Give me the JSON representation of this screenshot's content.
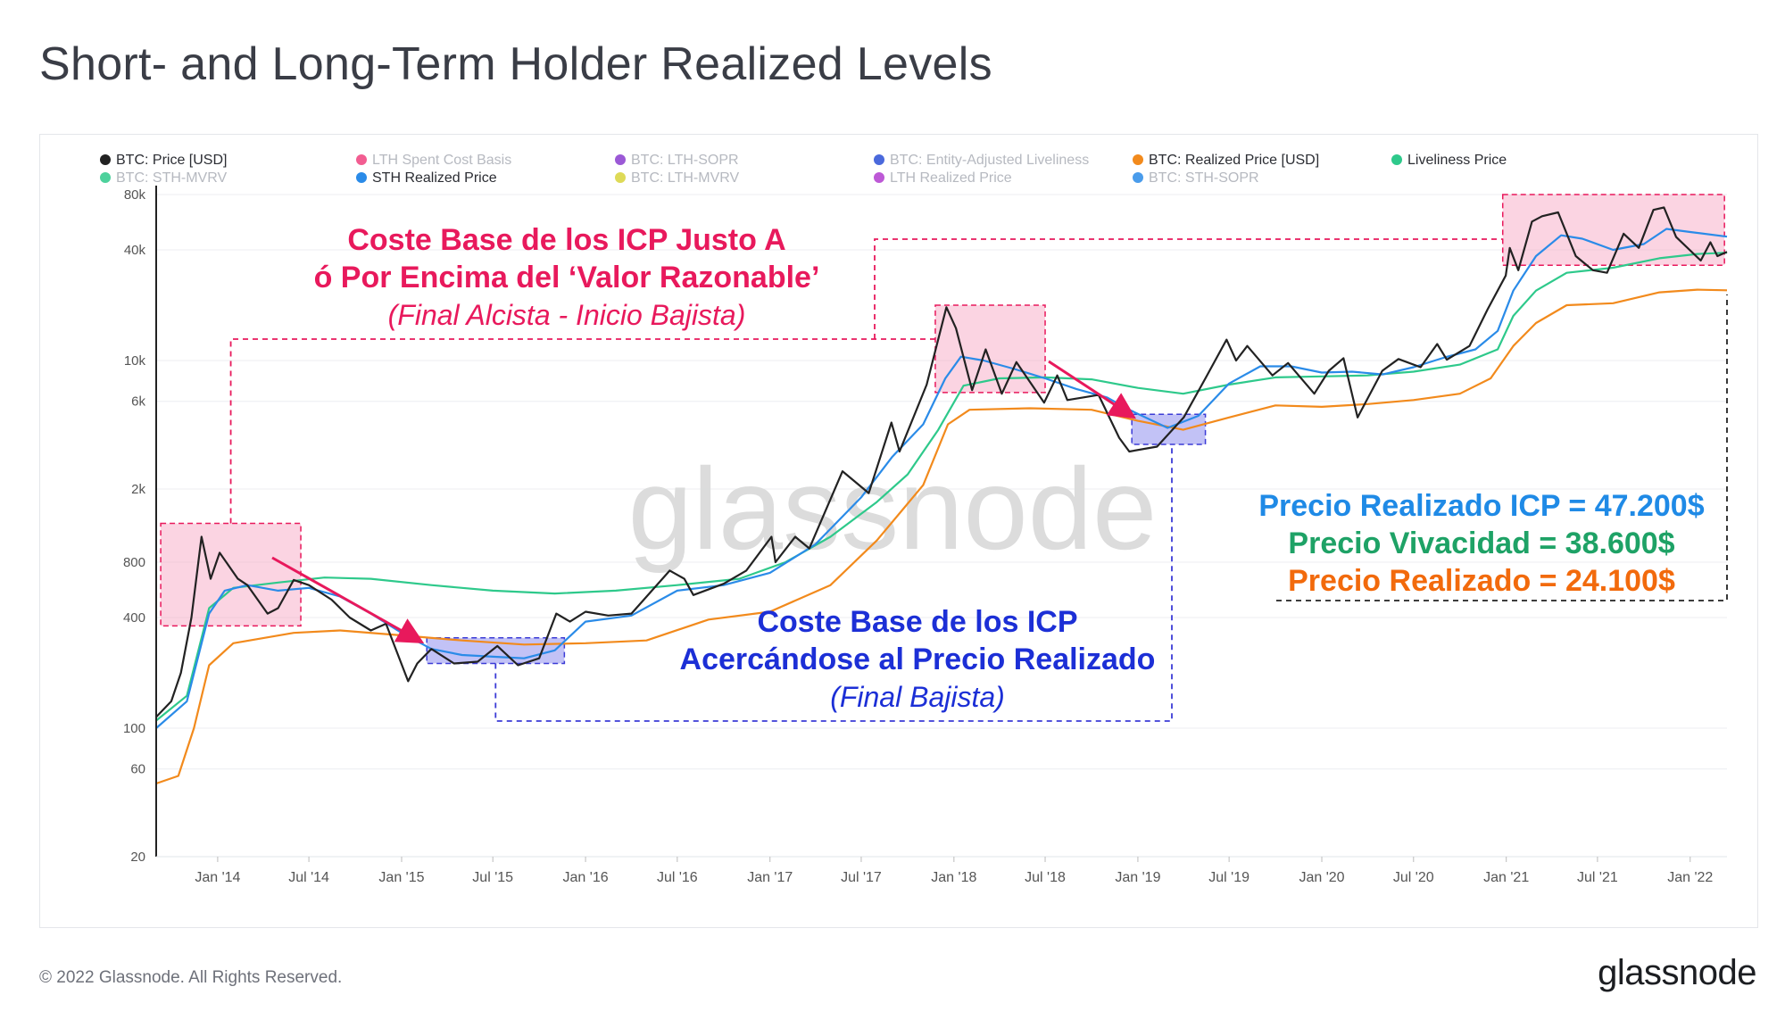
{
  "header": {
    "title": "Short- and Long-Term Holder Realized Levels"
  },
  "footer": {
    "copyright": "© 2022 Glassnode. All Rights Reserved.",
    "logo": "glassnode"
  },
  "watermark": "glassnode",
  "legend": [
    {
      "label": "BTC: Price [USD]",
      "color": "#222222",
      "active": true
    },
    {
      "label": "LTH Spent Cost Basis",
      "color": "#f0417e",
      "active": false
    },
    {
      "label": "BTC: LTH-SOPR",
      "color": "#8a3ccf",
      "active": false
    },
    {
      "label": "BTC: Entity-Adjusted Liveliness",
      "color": "#2a4fd6",
      "active": false
    },
    {
      "label": "BTC: Realized Price [USD]",
      "color": "#f28a1c",
      "active": true
    },
    {
      "label": "Liveliness Price",
      "color": "#2ec98b",
      "active": true
    },
    {
      "label": "BTC: STH-MVRV",
      "color": "#2ec98b",
      "active": false
    },
    {
      "label": "STH Realized Price",
      "color": "#2a8be8",
      "active": true
    },
    {
      "label": "BTC: LTH-MVRV",
      "color": "#d8d33a",
      "active": false
    },
    {
      "label": "LTH Realized Price",
      "color": "#b23ccf",
      "active": false
    },
    {
      "label": "BTC: STH-SOPR",
      "color": "#2a8be8",
      "active": false
    }
  ],
  "annotations": {
    "top_line1": "Coste Base de los ICP Justo A",
    "top_line2": "ó Por Encima del ‘Valor Razonable’",
    "top_line3": "(Final Alcista - Inicio Bajista)",
    "mid_line1": "Coste Base de los ICP",
    "mid_line2": "Acercándose al Precio Realizado",
    "mid_line3": "(Final Bajista)",
    "right_line1": "Precio Realizado ICP = 47.200$",
    "right_line2": "Precio Vivacidad = 38.600$",
    "right_line3": "Precio Realizado = 24.100$"
  },
  "colors": {
    "price": "#222222",
    "realized": "#f28a1c",
    "liveliness": "#2ec98b",
    "sth": "#2a8be8",
    "pink_text": "#e8195c",
    "blue_text": "#1c2fd6",
    "sth_text": "#1f8ae6",
    "live_text": "#1ea266",
    "real_text": "#f26a0c"
  },
  "chart_data": {
    "type": "line",
    "y_scale": "log",
    "ylim": [
      20,
      80000
    ],
    "yticks": [
      {
        "v": 20,
        "label": "20"
      },
      {
        "v": 60,
        "label": "60"
      },
      {
        "v": 100,
        "label": "100"
      },
      {
        "v": 400,
        "label": "400"
      },
      {
        "v": 800,
        "label": "800"
      },
      {
        "v": 2000,
        "label": "2k"
      },
      {
        "v": 6000,
        "label": "6k"
      },
      {
        "v": 10000,
        "label": "10k"
      },
      {
        "v": 40000,
        "label": "40k"
      },
      {
        "v": 80000,
        "label": "80k"
      }
    ],
    "xlim": [
      "2013-09-01",
      "2022-03-15"
    ],
    "xticks": [
      {
        "d": "2014-01-01",
        "label": "Jan '14"
      },
      {
        "d": "2014-07-01",
        "label": "Jul '14"
      },
      {
        "d": "2015-01-01",
        "label": "Jan '15"
      },
      {
        "d": "2015-07-01",
        "label": "Jul '15"
      },
      {
        "d": "2016-01-01",
        "label": "Jan '16"
      },
      {
        "d": "2016-07-01",
        "label": "Jul '16"
      },
      {
        "d": "2017-01-01",
        "label": "Jan '17"
      },
      {
        "d": "2017-07-01",
        "label": "Jul '17"
      },
      {
        "d": "2018-01-01",
        "label": "Jan '18"
      },
      {
        "d": "2018-07-01",
        "label": "Jul '18"
      },
      {
        "d": "2019-01-01",
        "label": "Jan '19"
      },
      {
        "d": "2019-07-01",
        "label": "Jul '19"
      },
      {
        "d": "2020-01-01",
        "label": "Jan '20"
      },
      {
        "d": "2020-07-01",
        "label": "Jul '20"
      },
      {
        "d": "2021-01-01",
        "label": "Jan '21"
      },
      {
        "d": "2021-07-01",
        "label": "Jul '21"
      },
      {
        "d": "2022-01-01",
        "label": "Jan '22"
      }
    ],
    "series": [
      {
        "name": "BTC: Price [USD]",
        "color": "#222222",
        "width": 2.2,
        "points": [
          [
            "2013-09-01",
            115
          ],
          [
            "2013-10-01",
            140
          ],
          [
            "2013-10-20",
            200
          ],
          [
            "2013-11-10",
            400
          ],
          [
            "2013-11-30",
            1100
          ],
          [
            "2013-12-18",
            650
          ],
          [
            "2014-01-05",
            900
          ],
          [
            "2014-02-10",
            650
          ],
          [
            "2014-03-01",
            600
          ],
          [
            "2014-04-10",
            420
          ],
          [
            "2014-05-01",
            450
          ],
          [
            "2014-06-01",
            640
          ],
          [
            "2014-07-01",
            600
          ],
          [
            "2014-08-15",
            500
          ],
          [
            "2014-09-20",
            400
          ],
          [
            "2014-11-01",
            340
          ],
          [
            "2014-12-01",
            370
          ],
          [
            "2015-01-14",
            180
          ],
          [
            "2015-02-01",
            225
          ],
          [
            "2015-03-01",
            270
          ],
          [
            "2015-04-15",
            225
          ],
          [
            "2015-06-01",
            230
          ],
          [
            "2015-07-10",
            280
          ],
          [
            "2015-08-20",
            220
          ],
          [
            "2015-10-01",
            240
          ],
          [
            "2015-11-04",
            420
          ],
          [
            "2015-12-01",
            380
          ],
          [
            "2016-01-01",
            430
          ],
          [
            "2016-02-15",
            410
          ],
          [
            "2016-04-01",
            420
          ],
          [
            "2016-06-16",
            720
          ],
          [
            "2016-07-15",
            650
          ],
          [
            "2016-08-02",
            530
          ],
          [
            "2016-10-01",
            610
          ],
          [
            "2016-11-15",
            720
          ],
          [
            "2017-01-04",
            1100
          ],
          [
            "2017-01-12",
            800
          ],
          [
            "2017-02-20",
            1100
          ],
          [
            "2017-03-20",
            950
          ],
          [
            "2017-05-25",
            2500
          ],
          [
            "2017-07-16",
            1900
          ],
          [
            "2017-08-30",
            4600
          ],
          [
            "2017-09-15",
            3200
          ],
          [
            "2017-11-08",
            7400
          ],
          [
            "2017-12-17",
            19500
          ],
          [
            "2018-01-05",
            15000
          ],
          [
            "2018-02-06",
            6900
          ],
          [
            "2018-03-05",
            11500
          ],
          [
            "2018-04-06",
            6600
          ],
          [
            "2018-05-05",
            9800
          ],
          [
            "2018-06-29",
            5900
          ],
          [
            "2018-07-25",
            8300
          ],
          [
            "2018-08-14",
            6100
          ],
          [
            "2018-10-15",
            6500
          ],
          [
            "2018-11-25",
            3800
          ],
          [
            "2018-12-15",
            3200
          ],
          [
            "2019-02-08",
            3400
          ],
          [
            "2019-04-02",
            4900
          ],
          [
            "2019-05-15",
            8000
          ],
          [
            "2019-06-26",
            13000
          ],
          [
            "2019-07-15",
            10000
          ],
          [
            "2019-08-06",
            12000
          ],
          [
            "2019-09-25",
            8300
          ],
          [
            "2019-10-26",
            9700
          ],
          [
            "2019-12-17",
            6600
          ],
          [
            "2020-01-15",
            8800
          ],
          [
            "2020-02-13",
            10300
          ],
          [
            "2020-03-12",
            4900
          ],
          [
            "2020-04-30",
            8800
          ],
          [
            "2020-06-01",
            10200
          ],
          [
            "2020-07-15",
            9200
          ],
          [
            "2020-08-17",
            12300
          ],
          [
            "2020-09-05",
            10100
          ],
          [
            "2020-10-20",
            12000
          ],
          [
            "2020-11-25",
            19000
          ],
          [
            "2020-12-31",
            29000
          ],
          [
            "2021-01-08",
            41000
          ],
          [
            "2021-01-25",
            31000
          ],
          [
            "2021-02-21",
            57000
          ],
          [
            "2021-03-13",
            61000
          ],
          [
            "2021-04-14",
            64000
          ],
          [
            "2021-05-19",
            37000
          ],
          [
            "2021-06-22",
            31000
          ],
          [
            "2021-07-20",
            30000
          ],
          [
            "2021-08-22",
            49000
          ],
          [
            "2021-09-21",
            41000
          ],
          [
            "2021-10-20",
            66000
          ],
          [
            "2021-11-10",
            68000
          ],
          [
            "2021-12-04",
            47000
          ],
          [
            "2022-01-22",
            35000
          ],
          [
            "2022-02-10",
            44000
          ],
          [
            "2022-02-24",
            37000
          ],
          [
            "2022-03-15",
            39000
          ]
        ]
      },
      {
        "name": "STH Realized Price",
        "color": "#2a8be8",
        "width": 2.2,
        "points": [
          [
            "2013-09-01",
            100
          ],
          [
            "2013-11-01",
            140
          ],
          [
            "2013-12-15",
            420
          ],
          [
            "2014-01-15",
            560
          ],
          [
            "2014-03-01",
            600
          ],
          [
            "2014-05-01",
            560
          ],
          [
            "2014-07-01",
            580
          ],
          [
            "2014-09-01",
            520
          ],
          [
            "2014-11-01",
            420
          ],
          [
            "2015-01-01",
            330
          ],
          [
            "2015-03-01",
            270
          ],
          [
            "2015-05-01",
            250
          ],
          [
            "2015-07-01",
            245
          ],
          [
            "2015-09-01",
            240
          ],
          [
            "2015-11-01",
            265
          ],
          [
            "2016-01-01",
            380
          ],
          [
            "2016-04-01",
            410
          ],
          [
            "2016-07-01",
            560
          ],
          [
            "2016-10-01",
            600
          ],
          [
            "2017-01-01",
            700
          ],
          [
            "2017-04-01",
            1000
          ],
          [
            "2017-07-01",
            1800
          ],
          [
            "2017-09-01",
            3000
          ],
          [
            "2017-11-01",
            4500
          ],
          [
            "2017-12-15",
            8000
          ],
          [
            "2018-01-15",
            10500
          ],
          [
            "2018-03-01",
            10000
          ],
          [
            "2018-05-01",
            9000
          ],
          [
            "2018-07-01",
            8000
          ],
          [
            "2018-09-01",
            7000
          ],
          [
            "2018-11-01",
            6300
          ],
          [
            "2018-12-15",
            5400
          ],
          [
            "2019-03-01",
            4300
          ],
          [
            "2019-05-01",
            5000
          ],
          [
            "2019-07-01",
            7500
          ],
          [
            "2019-09-01",
            9300
          ],
          [
            "2019-11-01",
            9300
          ],
          [
            "2020-01-01",
            8600
          ],
          [
            "2020-03-01",
            8700
          ],
          [
            "2020-05-01",
            8400
          ],
          [
            "2020-07-01",
            9200
          ],
          [
            "2020-09-01",
            10400
          ],
          [
            "2020-11-01",
            11500
          ],
          [
            "2020-12-15",
            14500
          ],
          [
            "2021-01-15",
            24000
          ],
          [
            "2021-03-01",
            37000
          ],
          [
            "2021-04-20",
            48000
          ],
          [
            "2021-06-01",
            46000
          ],
          [
            "2021-08-01",
            40000
          ],
          [
            "2021-10-01",
            43000
          ],
          [
            "2021-11-15",
            52000
          ],
          [
            "2022-01-01",
            50000
          ],
          [
            "2022-03-15",
            47200
          ]
        ]
      },
      {
        "name": "Liveliness Price",
        "color": "#2ec98b",
        "width": 2.2,
        "points": [
          [
            "2013-09-01",
            110
          ],
          [
            "2013-11-01",
            150
          ],
          [
            "2013-12-15",
            450
          ],
          [
            "2014-02-01",
            580
          ],
          [
            "2014-05-01",
            620
          ],
          [
            "2014-08-01",
            660
          ],
          [
            "2014-11-01",
            650
          ],
          [
            "2015-03-01",
            600
          ],
          [
            "2015-07-01",
            560
          ],
          [
            "2015-11-01",
            540
          ],
          [
            "2016-03-01",
            560
          ],
          [
            "2016-07-01",
            600
          ],
          [
            "2016-11-01",
            650
          ],
          [
            "2017-02-01",
            800
          ],
          [
            "2017-05-01",
            1100
          ],
          [
            "2017-08-01",
            1700
          ],
          [
            "2017-10-01",
            2400
          ],
          [
            "2017-12-01",
            4200
          ],
          [
            "2018-01-20",
            7300
          ],
          [
            "2018-04-01",
            8000
          ],
          [
            "2018-07-01",
            8100
          ],
          [
            "2018-10-01",
            7900
          ],
          [
            "2019-01-01",
            7100
          ],
          [
            "2019-04-01",
            6600
          ],
          [
            "2019-07-01",
            7400
          ],
          [
            "2019-10-01",
            8100
          ],
          [
            "2020-01-01",
            8200
          ],
          [
            "2020-04-01",
            8300
          ],
          [
            "2020-07-01",
            8700
          ],
          [
            "2020-10-01",
            9500
          ],
          [
            "2020-12-15",
            11500
          ],
          [
            "2021-01-15",
            17500
          ],
          [
            "2021-03-01",
            24000
          ],
          [
            "2021-05-01",
            30000
          ],
          [
            "2021-08-01",
            32000
          ],
          [
            "2021-11-01",
            36000
          ],
          [
            "2022-01-15",
            38000
          ],
          [
            "2022-03-15",
            38600
          ]
        ]
      },
      {
        "name": "BTC: Realized Price [USD]",
        "color": "#f28a1c",
        "width": 2.2,
        "points": [
          [
            "2013-09-01",
            50
          ],
          [
            "2013-10-15",
            55
          ],
          [
            "2013-11-15",
            100
          ],
          [
            "2013-12-15",
            220
          ],
          [
            "2014-02-01",
            290
          ],
          [
            "2014-06-01",
            330
          ],
          [
            "2014-09-01",
            340
          ],
          [
            "2015-01-01",
            320
          ],
          [
            "2015-05-01",
            300
          ],
          [
            "2015-09-01",
            285
          ],
          [
            "2016-01-01",
            290
          ],
          [
            "2016-05-01",
            300
          ],
          [
            "2016-09-01",
            390
          ],
          [
            "2017-01-01",
            430
          ],
          [
            "2017-05-01",
            600
          ],
          [
            "2017-08-01",
            1050
          ],
          [
            "2017-11-01",
            2100
          ],
          [
            "2017-12-20",
            4500
          ],
          [
            "2018-02-01",
            5400
          ],
          [
            "2018-06-01",
            5500
          ],
          [
            "2018-10-01",
            5400
          ],
          [
            "2019-01-01",
            4700
          ],
          [
            "2019-04-01",
            4200
          ],
          [
            "2019-07-01",
            4900
          ],
          [
            "2019-10-01",
            5700
          ],
          [
            "2020-01-01",
            5600
          ],
          [
            "2020-04-01",
            5800
          ],
          [
            "2020-07-01",
            6100
          ],
          [
            "2020-10-01",
            6600
          ],
          [
            "2020-12-01",
            8000
          ],
          [
            "2021-01-15",
            12000
          ],
          [
            "2021-03-01",
            16000
          ],
          [
            "2021-05-01",
            20000
          ],
          [
            "2021-08-01",
            20500
          ],
          [
            "2021-11-01",
            23500
          ],
          [
            "2022-01-15",
            24300
          ],
          [
            "2022-03-15",
            24100
          ]
        ]
      }
    ]
  }
}
